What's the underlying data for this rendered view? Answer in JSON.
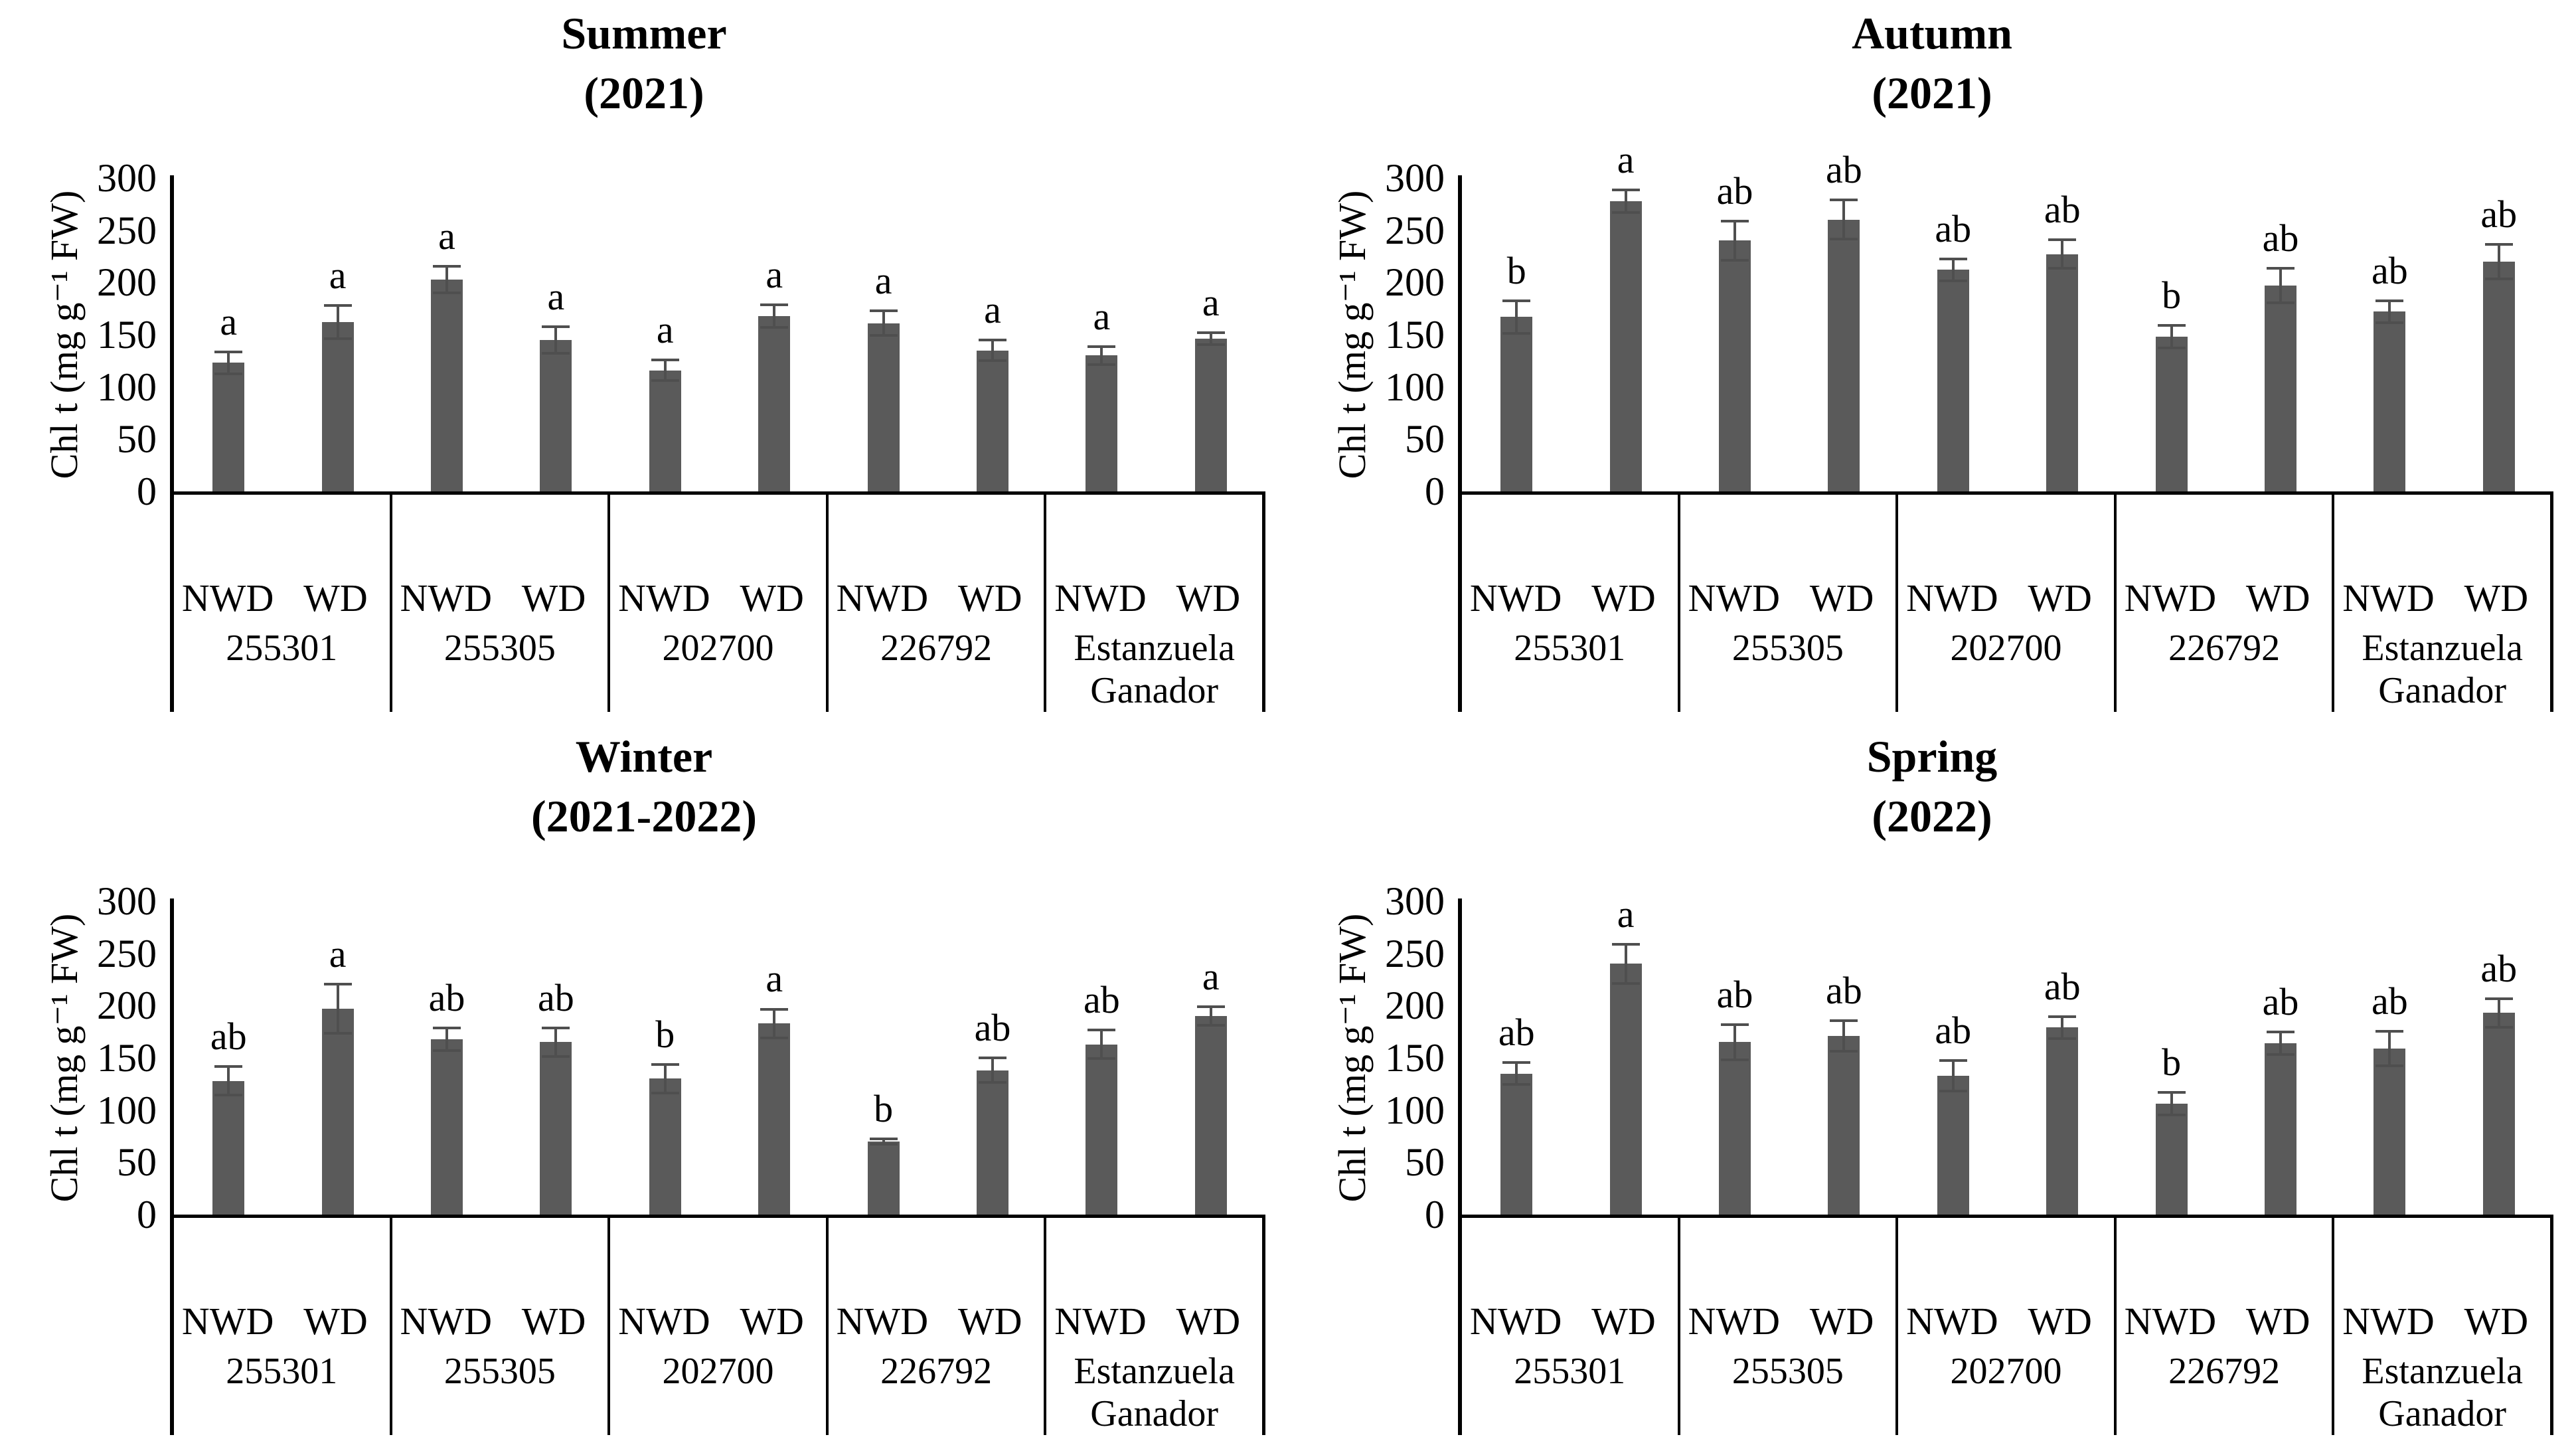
{
  "figure": {
    "background": "#ffffff",
    "bar_color": "#5a5a5a",
    "error_bar_color": "#4f4f4f",
    "axis_color": "#000000",
    "treatments": [
      "NWD",
      "WD"
    ],
    "genotypes": [
      "255301",
      "255305",
      "202700",
      "226792",
      "Estanzuela Ganador"
    ]
  },
  "chart_data": [
    {
      "type": "bar",
      "season": "summer",
      "title_line1": "Summer",
      "title_line2": "(2021)",
      "ylabel": "Chl t (mg g⁻¹ FW)",
      "ylim": [
        0,
        300
      ],
      "yticks": [
        0,
        50,
        100,
        150,
        200,
        250,
        300
      ],
      "grid": false,
      "legend": "none",
      "groups": [
        {
          "genotype": "255301",
          "bars": [
            {
              "treatment": "NWD",
              "value": 123,
              "error": 12,
              "letter": "a"
            },
            {
              "treatment": "WD",
              "value": 162,
              "error": 17,
              "letter": "a"
            }
          ]
        },
        {
          "genotype": "255305",
          "bars": [
            {
              "treatment": "NWD",
              "value": 203,
              "error": 14,
              "letter": "a"
            },
            {
              "treatment": "WD",
              "value": 145,
              "error": 14,
              "letter": "a"
            }
          ]
        },
        {
          "genotype": "202700",
          "bars": [
            {
              "treatment": "NWD",
              "value": 116,
              "error": 11,
              "letter": "a"
            },
            {
              "treatment": "WD",
              "value": 168,
              "error": 12,
              "letter": "a"
            }
          ]
        },
        {
          "genotype": "226792",
          "bars": [
            {
              "treatment": "NWD",
              "value": 161,
              "error": 13,
              "letter": "a"
            },
            {
              "treatment": "WD",
              "value": 135,
              "error": 11,
              "letter": "a"
            }
          ]
        },
        {
          "genotype": "Estanzuela Ganador",
          "bars": [
            {
              "treatment": "NWD",
              "value": 130,
              "error": 10,
              "letter": "a"
            },
            {
              "treatment": "WD",
              "value": 146,
              "error": 7,
              "letter": "a"
            }
          ]
        }
      ]
    },
    {
      "type": "bar",
      "season": "autumn",
      "title_line1": "Autumn",
      "title_line2": "(2021)",
      "ylabel": "Chl t (mg g⁻¹ FW)",
      "ylim": [
        0,
        300
      ],
      "yticks": [
        0,
        50,
        100,
        150,
        200,
        250,
        300
      ],
      "grid": false,
      "legend": "none",
      "groups": [
        {
          "genotype": "255301",
          "bars": [
            {
              "treatment": "NWD",
              "value": 167,
              "error": 17,
              "letter": "b"
            },
            {
              "treatment": "WD",
              "value": 278,
              "error": 12,
              "letter": "a"
            }
          ]
        },
        {
          "genotype": "255305",
          "bars": [
            {
              "treatment": "NWD",
              "value": 240,
              "error": 20,
              "letter": "ab"
            },
            {
              "treatment": "WD",
              "value": 260,
              "error": 20,
              "letter": "ab"
            }
          ]
        },
        {
          "genotype": "202700",
          "bars": [
            {
              "treatment": "NWD",
              "value": 212,
              "error": 12,
              "letter": "ab"
            },
            {
              "treatment": "WD",
              "value": 227,
              "error": 15,
              "letter": "ab"
            }
          ]
        },
        {
          "genotype": "226792",
          "bars": [
            {
              "treatment": "NWD",
              "value": 148,
              "error": 12,
              "letter": "b"
            },
            {
              "treatment": "WD",
              "value": 197,
              "error": 18,
              "letter": "ab"
            }
          ]
        },
        {
          "genotype": "Estanzuela Ganador",
          "bars": [
            {
              "treatment": "NWD",
              "value": 172,
              "error": 12,
              "letter": "ab"
            },
            {
              "treatment": "WD",
              "value": 220,
              "error": 18,
              "letter": "ab"
            }
          ]
        }
      ]
    },
    {
      "type": "bar",
      "season": "winter",
      "title_line1": "Winter",
      "title_line2": "(2021-2022)",
      "ylabel": "Chl t (mg g⁻¹ FW)",
      "ylim": [
        0,
        300
      ],
      "yticks": [
        0,
        50,
        100,
        150,
        200,
        250,
        300
      ],
      "grid": false,
      "legend": "none",
      "groups": [
        {
          "genotype": "255301",
          "bars": [
            {
              "treatment": "NWD",
              "value": 128,
              "error": 15,
              "letter": "ab"
            },
            {
              "treatment": "WD",
              "value": 197,
              "error": 25,
              "letter": "a"
            }
          ]
        },
        {
          "genotype": "255305",
          "bars": [
            {
              "treatment": "NWD",
              "value": 168,
              "error": 12,
              "letter": "ab"
            },
            {
              "treatment": "WD",
              "value": 165,
              "error": 15,
              "letter": "ab"
            }
          ]
        },
        {
          "genotype": "202700",
          "bars": [
            {
              "treatment": "NWD",
              "value": 130,
              "error": 15,
              "letter": "b"
            },
            {
              "treatment": "WD",
              "value": 183,
              "error": 15,
              "letter": "a"
            }
          ]
        },
        {
          "genotype": "226792",
          "bars": [
            {
              "treatment": "NWD",
              "value": 70,
              "error": 4,
              "letter": "b"
            },
            {
              "treatment": "WD",
              "value": 138,
              "error": 13,
              "letter": "ab"
            }
          ]
        },
        {
          "genotype": "Estanzuela Ganador",
          "bars": [
            {
              "treatment": "NWD",
              "value": 163,
              "error": 15,
              "letter": "ab"
            },
            {
              "treatment": "WD",
              "value": 190,
              "error": 10,
              "letter": "a"
            }
          ]
        }
      ]
    },
    {
      "type": "bar",
      "season": "spring",
      "title_line1": "Spring",
      "title_line2": "(2022)",
      "ylabel": "Chl t (mg g⁻¹ FW)",
      "ylim": [
        0,
        300
      ],
      "yticks": [
        0,
        50,
        100,
        150,
        200,
        250,
        300
      ],
      "grid": false,
      "legend": "none",
      "groups": [
        {
          "genotype": "255301",
          "bars": [
            {
              "treatment": "NWD",
              "value": 135,
              "error": 12,
              "letter": "ab"
            },
            {
              "treatment": "WD",
              "value": 240,
              "error": 20,
              "letter": "a"
            }
          ]
        },
        {
          "genotype": "255305",
          "bars": [
            {
              "treatment": "NWD",
              "value": 165,
              "error": 18,
              "letter": "ab"
            },
            {
              "treatment": "WD",
              "value": 171,
              "error": 16,
              "letter": "ab"
            }
          ]
        },
        {
          "genotype": "202700",
          "bars": [
            {
              "treatment": "NWD",
              "value": 133,
              "error": 16,
              "letter": "ab"
            },
            {
              "treatment": "WD",
              "value": 179,
              "error": 12,
              "letter": "ab"
            }
          ]
        },
        {
          "genotype": "226792",
          "bars": [
            {
              "treatment": "NWD",
              "value": 106,
              "error": 12,
              "letter": "b"
            },
            {
              "treatment": "WD",
              "value": 164,
              "error": 12,
              "letter": "ab"
            }
          ]
        },
        {
          "genotype": "Estanzuela Ganador",
          "bars": [
            {
              "treatment": "NWD",
              "value": 159,
              "error": 18,
              "letter": "ab"
            },
            {
              "treatment": "WD",
              "value": 193,
              "error": 15,
              "letter": "ab"
            }
          ]
        }
      ]
    }
  ]
}
